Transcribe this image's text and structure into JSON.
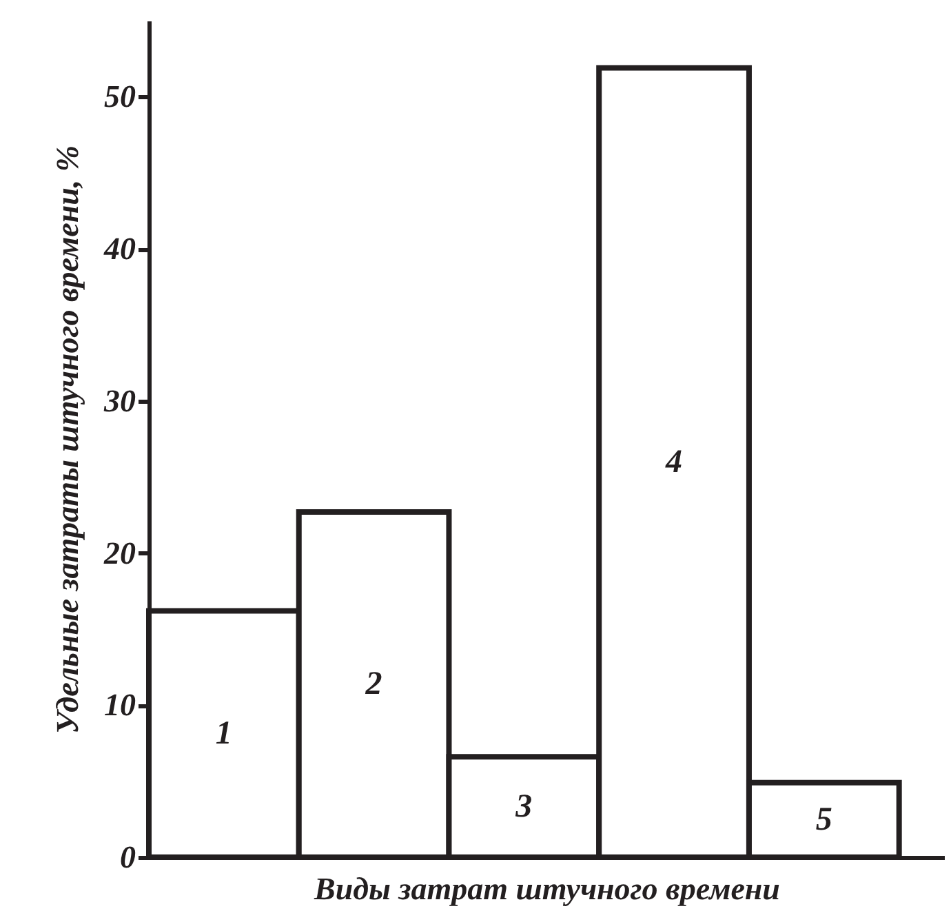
{
  "chart_data": {
    "type": "bar",
    "xlabel": "Виды затрат штучного времени",
    "ylabel": "Удельные затраты штучного времени, %",
    "categories": [
      "1",
      "2",
      "3",
      "4",
      "5"
    ],
    "values": [
      16.2,
      22.7,
      6.6,
      51.9,
      4.9
    ],
    "color": "#ffffff",
    "ylim": [
      0,
      55
    ],
    "yticks": [
      0,
      10,
      20,
      30,
      40,
      50
    ],
    "grid": false
  }
}
